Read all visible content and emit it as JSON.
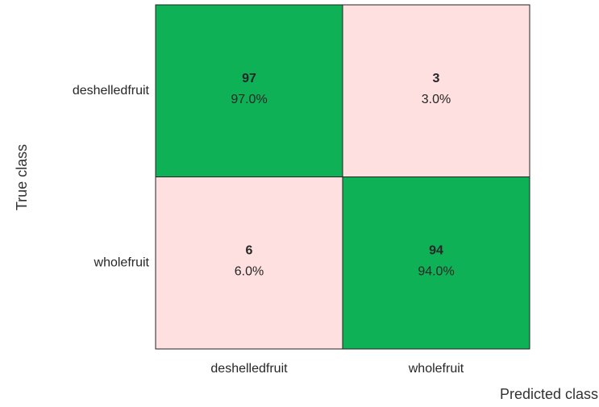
{
  "chart_data": {
    "type": "confusion_matrix",
    "xlabel": "Predicted class",
    "ylabel": "True class",
    "row_categories": [
      "deshelledfruit",
      "wholefruit"
    ],
    "col_categories": [
      "deshelledfruit",
      "wholefruit"
    ],
    "values": [
      [
        97,
        3
      ],
      [
        6,
        94
      ]
    ],
    "percentages": [
      [
        97.0,
        3.0
      ],
      [
        6.0,
        94.0
      ]
    ],
    "percentage_labels": [
      [
        "97.0%",
        "3.0%"
      ],
      [
        "6.0%",
        "94.0%"
      ]
    ],
    "colors": {
      "correct": "#0fb157",
      "incorrect": "#fde0df"
    }
  }
}
